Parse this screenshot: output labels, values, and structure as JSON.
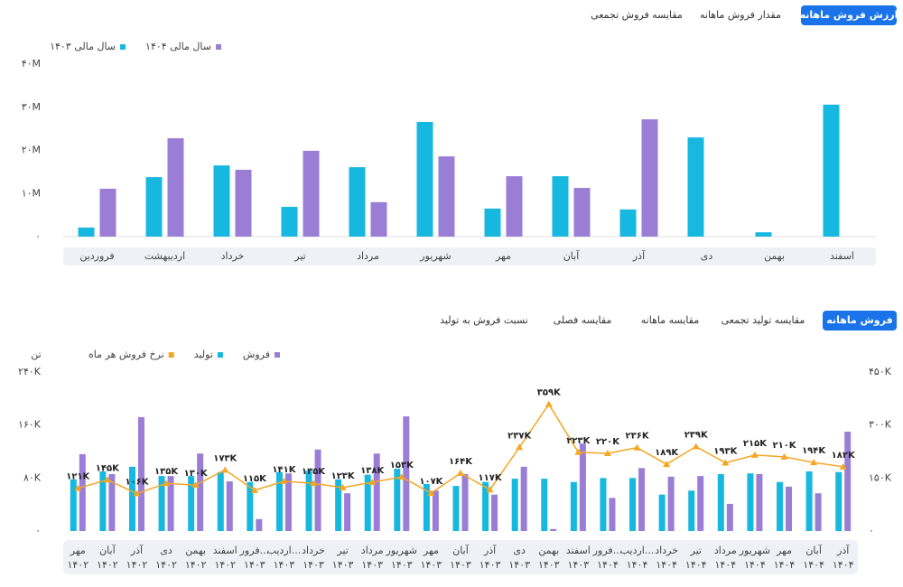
{
  "chart_data": [
    {
      "type": "bar",
      "tabs": [
        "ارزش فروش ماهانه",
        "مقدار فروش ماهانه",
        "مقایسه فروش تجمعی"
      ],
      "categories": [
        "فروردین",
        "اردیبهشت",
        "خرداد",
        "تیر",
        "مرداد",
        "شهریور",
        "مهر",
        "آبان",
        "آذر",
        "دی",
        "بهمن",
        "اسفند"
      ],
      "series": [
        {
          "name": "سال مالی ۱۴۰۴",
          "color": "#9a7ed6",
          "values": [
            11100000,
            22800000,
            15500000,
            19900000,
            8000000,
            18600000,
            14000000,
            11300000,
            27200000,
            null,
            null,
            null
          ]
        },
        {
          "name": "سال مالی ۱۴۰۳",
          "color": "#17b8e0",
          "values": [
            2100000,
            13800000,
            16500000,
            6900000,
            16100000,
            26600000,
            6500000,
            14000000,
            6300000,
            23000000,
            1000000,
            30600000
          ]
        }
      ],
      "ylim": [
        0,
        40000000
      ],
      "yticks": [
        {
          "value": 0,
          "label": "۰"
        },
        {
          "value": 10000000,
          "label": "۱۰M"
        },
        {
          "value": 20000000,
          "label": "۲۰M"
        },
        {
          "value": 30000000,
          "label": "۳۰M"
        },
        {
          "value": 40000000,
          "label": "۴۰M"
        }
      ]
    },
    {
      "type": "combo",
      "tabs": [
        "فروش ماهانه",
        "مقایسه تولید تجمعی",
        "مقایسه ماهانه",
        "مقایسه فصلی",
        "نسبت فروش به تولید"
      ],
      "y_label": "تن",
      "categories": [
        [
          "مهر",
          "۱۴۰۲"
        ],
        [
          "آبان",
          "۱۴۰۲"
        ],
        [
          "آذر",
          "۱۴۰۲"
        ],
        [
          "دی",
          "۱۴۰۲"
        ],
        [
          "بهمن",
          "۱۴۰۲"
        ],
        [
          "اسفند",
          "۱۴۰۲"
        ],
        [
          "فرور...",
          "۱۴۰۳"
        ],
        [
          "اردیب...",
          "۱۴۰۳"
        ],
        [
          "خرداد",
          "۱۴۰۳"
        ],
        [
          "تیر",
          "۱۴۰۳"
        ],
        [
          "مرداد",
          "۱۴۰۳"
        ],
        [
          "شهریور",
          "۱۴۰۳"
        ],
        [
          "مهر",
          "۱۴۰۳"
        ],
        [
          "آبان",
          "۱۴۰۳"
        ],
        [
          "آذر",
          "۱۴۰۳"
        ],
        [
          "دی",
          "۱۴۰۳"
        ],
        [
          "بهمن",
          "۱۴۰۳"
        ],
        [
          "اسفند",
          "۱۴۰۳"
        ],
        [
          "فرور...",
          "۱۴۰۴"
        ],
        [
          "اردیب...",
          "۱۴۰۴"
        ],
        [
          "خرداد",
          "۱۴۰۴"
        ],
        [
          "تیر",
          "۱۴۰۴"
        ],
        [
          "مرداد",
          "۱۴۰۴"
        ],
        [
          "شهریور",
          "۱۴۰۴"
        ],
        [
          "مهر",
          "۱۴۰۴"
        ],
        [
          "آبان",
          "۱۴۰۴"
        ],
        [
          "آذر",
          "۱۴۰۴"
        ]
      ],
      "series": [
        {
          "name": "فروش",
          "color": "#9a7ed6",
          "values": [
            116000,
            86000,
            172000,
            83000,
            117000,
            75000,
            18000,
            87000,
            123000,
            57000,
            117000,
            173000,
            61000,
            86000,
            55000,
            97000,
            3000,
            132000,
            50000,
            95000,
            82000,
            83000,
            41000,
            86000,
            67000,
            57000,
            150000
          ]
        },
        {
          "name": "تولید",
          "color": "#17b8e0",
          "values": [
            78000,
            90000,
            97000,
            83000,
            83000,
            89000,
            74000,
            89000,
            91000,
            78000,
            85000,
            94000,
            71000,
            68000,
            74000,
            79000,
            79000,
            74000,
            80000,
            80000,
            55000,
            61000,
            86000,
            87000,
            74000,
            90000,
            89000
          ]
        },
        {
          "name": "نرخ فروش هر ماه",
          "color": "#f5a623",
          "type": "line",
          "axis": "y2",
          "values": [
            121000,
            145000,
            106000,
            135000,
            130000,
            173000,
            115000,
            141000,
            135000,
            123000,
            138000,
            153000,
            107000,
            164000,
            117000,
            237000,
            359000,
            223000,
            220000,
            236000,
            189000,
            239000,
            193000,
            215000,
            210000,
            194000,
            182000
          ],
          "value_labels": [
            "۱۲۱K",
            "۱۴۵K",
            "۱۰۶K",
            "۱۳۵K",
            "۱۳۰K",
            "۱۷۳K",
            "۱۱۵K",
            "۱۴۱K",
            "۱۳۵K",
            "۱۲۳K",
            "۱۳۸K",
            "۱۵۳K",
            "۱۰۷K",
            "۱۶۴K",
            "۱۱۷K",
            "۲۳۷K",
            "۳۵۹K",
            "۲۲۳K",
            "۲۲۰K",
            "۲۳۶K",
            "۱۸۹K",
            "۲۳۹K",
            "۱۹۳K",
            "۲۱۵K",
            "۲۱۰K",
            "۱۹۴K",
            "۱۸۲K"
          ]
        }
      ],
      "ylim": [
        0,
        240000
      ],
      "yticks": [
        {
          "value": 0,
          "label": "۰"
        },
        {
          "value": 80000,
          "label": "۸۰K"
        },
        {
          "value": 160000,
          "label": "۱۶۰K"
        },
        {
          "value": 240000,
          "label": "۲۴۰K"
        }
      ],
      "y2lim": [
        0,
        450000
      ],
      "y2ticks": [
        {
          "value": 0,
          "label": "۰"
        },
        {
          "value": 150000,
          "label": "۱۵۰K"
        },
        {
          "value": 300000,
          "label": "۳۰۰K"
        },
        {
          "value": 450000,
          "label": "۴۵۰K"
        }
      ]
    }
  ]
}
